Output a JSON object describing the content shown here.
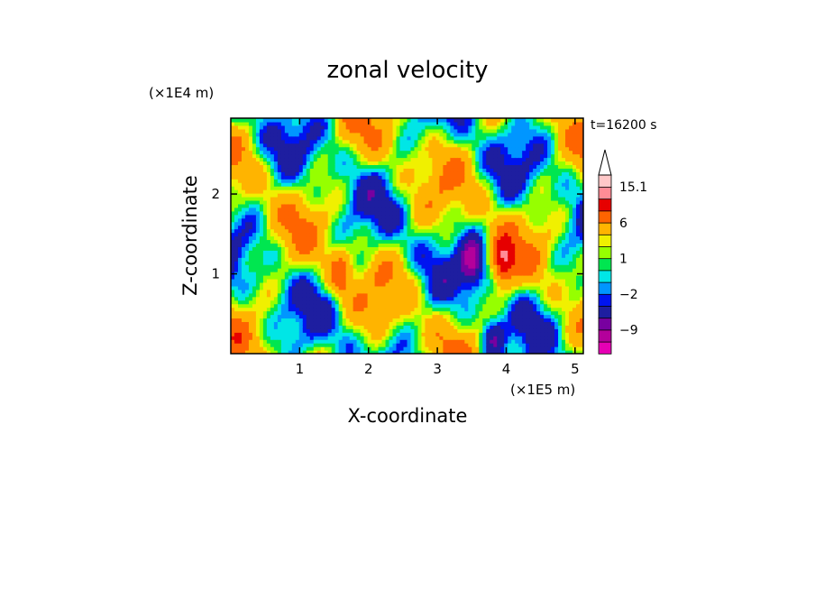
{
  "chart_data": {
    "type": "heatmap",
    "title": "zonal velocity",
    "xlabel": "X-coordinate",
    "ylabel": "Z-coordinate",
    "x_multiplier": "(×1E5 m)",
    "y_multiplier": "(×1E4 m)",
    "time_label": "t=16200 s",
    "xlim": [
      0.0,
      5.12
    ],
    "ylim": [
      0.0,
      2.95
    ],
    "x_ticks": [
      1,
      2,
      3,
      4,
      5
    ],
    "y_ticks": [
      1,
      2
    ],
    "colorbar": {
      "levels": [
        -15,
        -12,
        -9,
        -6,
        -3,
        -2,
        -1,
        0,
        1,
        2,
        3,
        6,
        9,
        12,
        15.1
      ],
      "labels": [
        {
          "value": 15.1,
          "text": "15.1"
        },
        {
          "value": 6,
          "text": "6"
        },
        {
          "value": 1,
          "text": "1"
        },
        {
          "value": -2,
          "text": "−2"
        },
        {
          "value": -9,
          "text": "−9"
        }
      ],
      "colors": [
        "#e600b4",
        "#b4009b",
        "#7800a0",
        "#1e1ea0",
        "#0014f0",
        "#0096ff",
        "#00e6e6",
        "#00e650",
        "#96ff00",
        "#f0f000",
        "#ffb400",
        "#ff6400",
        "#e60000",
        "#ff8c96",
        "#ffc8c8"
      ],
      "extend": "max"
    },
    "field_features": [
      {
        "x": 1.6,
        "z": 1.0,
        "value": 6
      },
      {
        "x": 3.5,
        "z": 1.15,
        "value": -9
      },
      {
        "x": 3.95,
        "z": 1.15,
        "value": 9
      },
      {
        "x": 3.8,
        "z": 0.2,
        "value": -6
      }
    ]
  }
}
